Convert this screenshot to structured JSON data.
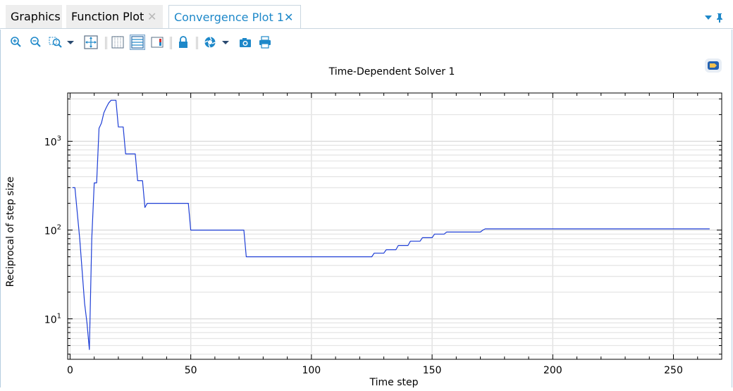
{
  "tabs": [
    {
      "label": "Graphics"
    },
    {
      "label": "Function Plot"
    },
    {
      "label": "Convergence Plot 1"
    }
  ],
  "toolbar": {
    "icons": [
      "zoom-in-icon",
      "zoom-out-icon",
      "zoom-box-icon",
      "dropdown-arrow-icon",
      "zoom-extents-icon",
      "show-grid-icon",
      "axis-icon",
      "legend-icon",
      "lock-axis-icon",
      "color-table-icon",
      "dropdown-arrow-icon",
      "camera-icon",
      "print-icon"
    ]
  },
  "colors": {
    "accent": "#1e88c9",
    "series": "#1f3fd6"
  },
  "chart_data": {
    "type": "line",
    "title": "Time-Dependent Solver 1",
    "xlabel": "Time step",
    "ylabel": "Reciprocal of step size",
    "x_scale": "linear",
    "y_scale": "log",
    "xlim": [
      -1,
      270
    ],
    "ylim": [
      3.5,
      3500
    ],
    "xticks": [
      0,
      50,
      100,
      150,
      200,
      250
    ],
    "xtick_labels": [
      "0",
      "50",
      "100",
      "150",
      "200",
      "250"
    ],
    "yticks": [
      10,
      100,
      1000
    ],
    "ytick_bases": [
      "10",
      "10",
      "10"
    ],
    "ytick_exponents": [
      "1",
      "2",
      "3"
    ],
    "grid": true,
    "series": [
      {
        "x": [
          1,
          2,
          4,
          6,
          7,
          8,
          9,
          10,
          11,
          12,
          13,
          14,
          15,
          16,
          17,
          18,
          19,
          20,
          21,
          22,
          23,
          24,
          25,
          26,
          27,
          28,
          29,
          30,
          31,
          32,
          35,
          40,
          45,
          49,
          50,
          55,
          60,
          65,
          70,
          72,
          73,
          80,
          90,
          100,
          110,
          120,
          125,
          126,
          130,
          131,
          135,
          136,
          140,
          141,
          145,
          146,
          150,
          151,
          155,
          156,
          160,
          165,
          170,
          171,
          172,
          180,
          200,
          220,
          240,
          260,
          265
        ],
        "y": [
          300,
          300,
          80,
          15,
          9,
          4.5,
          80,
          340,
          340,
          1400,
          1600,
          2100,
          2400,
          2700,
          2900,
          2900,
          2900,
          1450,
          1450,
          1450,
          720,
          720,
          720,
          720,
          720,
          360,
          360,
          360,
          180,
          200,
          200,
          200,
          200,
          200,
          100,
          100,
          100,
          100,
          100,
          100,
          50,
          50,
          50,
          50,
          50,
          50,
          50,
          55,
          55,
          60,
          60,
          67,
          67,
          75,
          75,
          82,
          82,
          90,
          90,
          95,
          95,
          95,
          95,
          100,
          103,
          103,
          103,
          103,
          103,
          103,
          103
        ]
      }
    ]
  }
}
